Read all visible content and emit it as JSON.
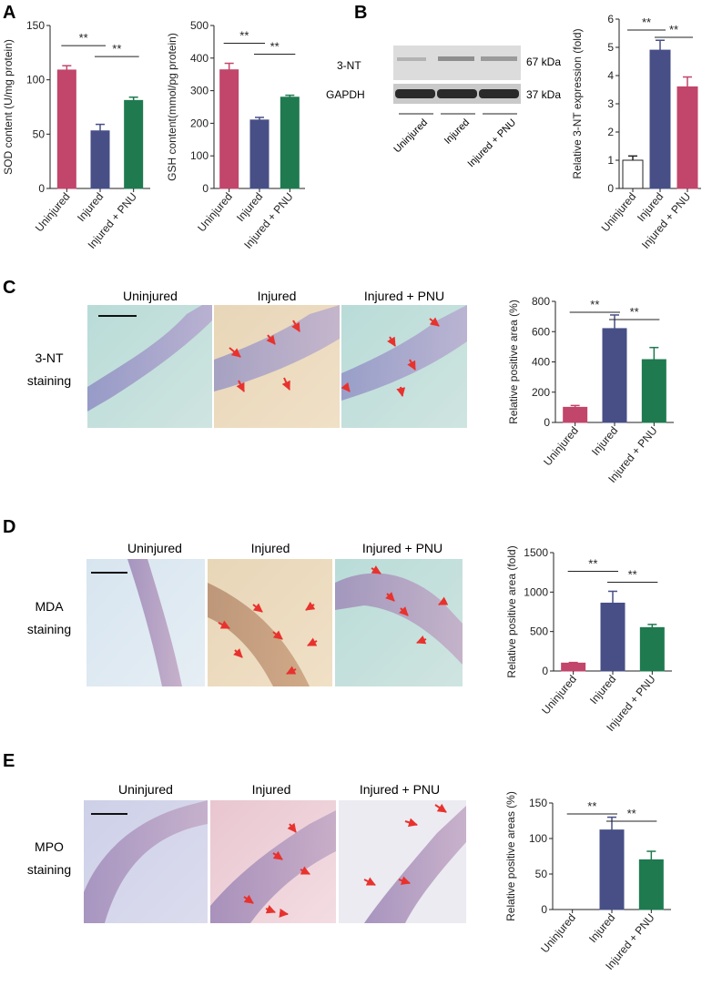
{
  "panels": {
    "A": {
      "letter": "A"
    },
    "B": {
      "letter": "B"
    },
    "C": {
      "letter": "C",
      "row_label": [
        "3-NT",
        "staining"
      ]
    },
    "D": {
      "letter": "D",
      "row_label": [
        "MDA",
        "staining"
      ]
    },
    "E": {
      "letter": "E",
      "row_label": [
        "MPO",
        "staining"
      ]
    }
  },
  "image_headers": [
    "Uninjured",
    "Injured",
    "Injured + PNU"
  ],
  "western_blot": {
    "bands": [
      "3-NT",
      "GAPDH"
    ],
    "sizes": [
      "67 kDa",
      "37 kDa"
    ],
    "lanes": [
      "Uninjured",
      "Injured",
      "Injured + PNU"
    ]
  },
  "significance": "**",
  "colors": {
    "uninjured": "#c2456b",
    "injured": "#474f86",
    "pnu": "#1f7a50",
    "open": "#ffffff",
    "arrow": "#e8322d"
  },
  "chart_data": [
    {
      "id": "sod",
      "panel": "A",
      "type": "bar",
      "categories": [
        "Uninjured",
        "Injured",
        "Injured + PNU"
      ],
      "values": [
        109,
        53,
        81
      ],
      "errors": [
        4,
        6,
        3
      ],
      "ylabel": "SOD content (U/mg protein)",
      "ylim": [
        0,
        150
      ],
      "yticks": [
        "0",
        "50",
        "100",
        "150"
      ],
      "bar_colors": [
        "#c2456b",
        "#474f86",
        "#1f7a50"
      ],
      "brackets": [
        {
          "from": 0,
          "to": 1,
          "label": "**"
        },
        {
          "from": 1,
          "to": 2,
          "label": "**"
        }
      ]
    },
    {
      "id": "gsh",
      "panel": "A",
      "type": "bar",
      "categories": [
        "Uninjured",
        "Injured",
        "Injured + PNU"
      ],
      "values": [
        364,
        210,
        280
      ],
      "errors": [
        20,
        8,
        6
      ],
      "ylabel": "GSH content(mmol/pg protein)",
      "ylim": [
        0,
        500
      ],
      "yticks": [
        "0",
        "100",
        "200",
        "300",
        "400",
        "500"
      ],
      "bar_colors": [
        "#c2456b",
        "#474f86",
        "#1f7a50"
      ],
      "brackets": [
        {
          "from": 0,
          "to": 1,
          "label": "**"
        },
        {
          "from": 1,
          "to": 2,
          "label": "**"
        }
      ]
    },
    {
      "id": "nt_expr",
      "panel": "B",
      "type": "bar",
      "categories": [
        "Uninjured",
        "Injured",
        "Injured + PNU"
      ],
      "values": [
        1.0,
        4.9,
        3.6
      ],
      "errors": [
        0.15,
        0.35,
        0.35
      ],
      "ylabel": "Relative 3-NT expression (fold)",
      "ylim": [
        0,
        6
      ],
      "yticks": [
        "0",
        "1",
        "2",
        "3",
        "4",
        "5",
        "6"
      ],
      "bar_colors": [
        "#ffffff",
        "#474f86",
        "#c2456b"
      ],
      "brackets": [
        {
          "from": 0,
          "to": 1,
          "label": "**"
        },
        {
          "from": 1,
          "to": 2,
          "label": "**"
        }
      ]
    },
    {
      "id": "nt_area",
      "panel": "C",
      "type": "bar",
      "categories": [
        "Uninjured",
        "Injured",
        "Injured + PNU"
      ],
      "values": [
        100,
        620,
        415
      ],
      "errors": [
        12,
        90,
        80
      ],
      "ylabel": "Relative positive area (%)",
      "ylim": [
        0,
        800
      ],
      "yticks": [
        "0",
        "200",
        "400",
        "600",
        "800"
      ],
      "bar_colors": [
        "#c2456b",
        "#474f86",
        "#1f7a50"
      ],
      "brackets": [
        {
          "from": 0,
          "to": 1,
          "label": "**"
        },
        {
          "from": 1,
          "to": 2,
          "label": "**"
        }
      ]
    },
    {
      "id": "mda_area",
      "panel": "D",
      "type": "bar",
      "categories": [
        "Uninjured",
        "Injured",
        "Injured + PNU"
      ],
      "values": [
        100,
        860,
        550
      ],
      "errors": [
        8,
        150,
        40
      ],
      "ylabel": "Relative positive area (fold)",
      "ylim": [
        0,
        1500
      ],
      "yticks": [
        "0",
        "500",
        "1000",
        "1500"
      ],
      "bar_colors": [
        "#c2456b",
        "#474f86",
        "#1f7a50"
      ],
      "brackets": [
        {
          "from": 0,
          "to": 1,
          "label": "**"
        },
        {
          "from": 1,
          "to": 2,
          "label": "**"
        }
      ]
    },
    {
      "id": "mpo_area",
      "panel": "E",
      "type": "bar",
      "categories": [
        "Uninjured",
        "Injured",
        "Injured + PNU"
      ],
      "values": [
        0,
        112,
        70
      ],
      "errors": [
        0,
        18,
        12
      ],
      "ylabel": "Relative positive areas (%)",
      "ylim": [
        0,
        150
      ],
      "yticks": [
        "0",
        "50",
        "100",
        "150"
      ],
      "bar_colors": [
        "#c2456b",
        "#474f86",
        "#1f7a50"
      ],
      "brackets": [
        {
          "from": 0,
          "to": 1,
          "label": "**"
        },
        {
          "from": 1,
          "to": 2,
          "label": "**"
        }
      ]
    }
  ]
}
